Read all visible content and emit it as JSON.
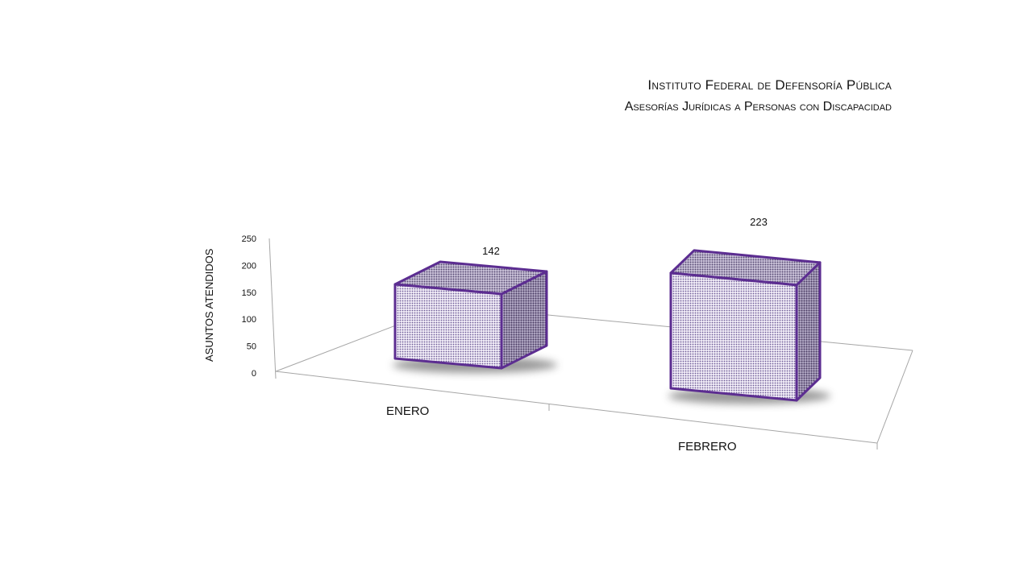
{
  "chart_data": {
    "type": "bar",
    "title": "Instituto Federal de Defensoría Pública",
    "subtitle": "Asesorías Jurídicas a Personas con Discapacidad",
    "ylabel": "ASUNTOS ATENDIDOS",
    "xlabel": "",
    "categories": [
      "ENERO",
      "FEBRERO"
    ],
    "values": [
      142,
      223
    ],
    "data_labels": [
      "142",
      "223"
    ],
    "ylim": [
      0,
      250
    ],
    "yticks": [
      "0",
      "50",
      "100",
      "150",
      "200",
      "250"
    ],
    "bar_color": "#5c2d91",
    "grid": false,
    "legend": "none"
  }
}
